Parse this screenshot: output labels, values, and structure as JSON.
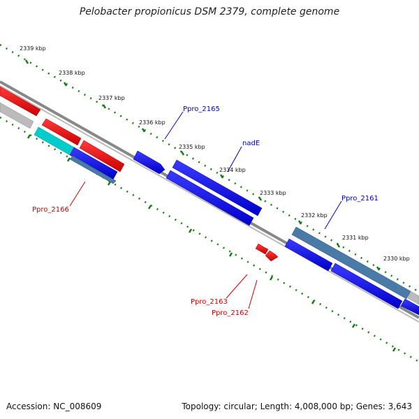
{
  "title": "Pelobacter propionicus DSM 2379, complete genome",
  "footer": {
    "accession": "Accession: NC_008609",
    "summary": "Topology: circular; Length: 4,008,000 bp; Genes: 3,643"
  },
  "scale_ticks": [
    {
      "label": "2339 kbp"
    },
    {
      "label": "2338 kbp"
    },
    {
      "label": "2337 kbp"
    },
    {
      "label": "2336 kbp"
    },
    {
      "label": "2335 kbp"
    },
    {
      "label": "2334 kbp"
    },
    {
      "label": "2333 kbp"
    },
    {
      "label": "2332 kbp"
    },
    {
      "label": "2331 kbp"
    },
    {
      "label": "2330 kbp"
    }
  ],
  "gene_labels": [
    {
      "name": "Ppro_2165",
      "color": "#0000cc"
    },
    {
      "name": "nadE",
      "color": "#0000cc"
    },
    {
      "name": "Ppro_2161",
      "color": "#0000cc"
    },
    {
      "name": "Ppro_2166",
      "color": "#cc0000"
    },
    {
      "name": "Ppro_2163",
      "color": "#cc0000"
    },
    {
      "name": "Ppro_2162",
      "color": "#cc0000"
    }
  ],
  "colors": {
    "forward_gene": "#0000ee",
    "reverse_gene": "#ee0000",
    "forward_label": "#0000cc",
    "reverse_label": "#cc0000",
    "steelblue_gene": "#4a7aa8",
    "cyan_gene": "#00cccc",
    "grey_gene": "#bbbbbb",
    "backbone": "#888888",
    "tick_green": "#1a7a1a"
  }
}
